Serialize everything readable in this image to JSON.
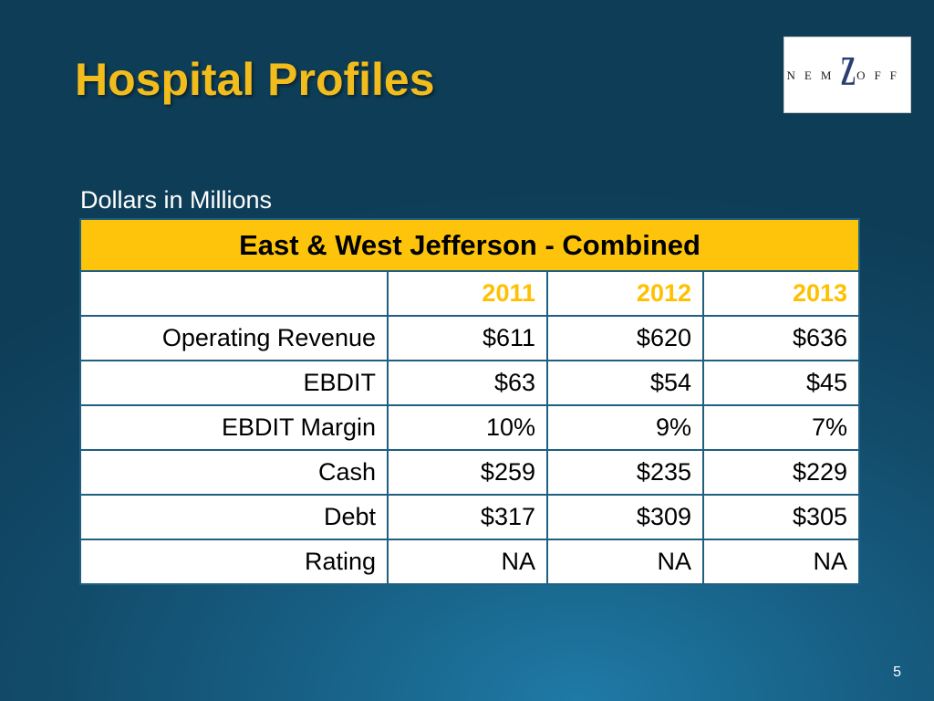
{
  "slide": {
    "title": "Hospital Profiles",
    "subtitle": "Dollars in Millions",
    "page_number": "5"
  },
  "logo": {
    "text_left": "NEM",
    "text_center": "Z",
    "text_right": "OFF"
  },
  "table": {
    "title": "East & West Jefferson - Combined",
    "years": [
      "2011",
      "2012",
      "2013"
    ],
    "rows": [
      {
        "label": "Operating Revenue",
        "values": [
          "$611",
          "$620",
          "$636"
        ]
      },
      {
        "label": "EBDIT",
        "values": [
          "$63",
          "$54",
          "$45"
        ]
      },
      {
        "label": "EBDIT Margin",
        "values": [
          "10%",
          "9%",
          "7%"
        ]
      },
      {
        "label": "Cash",
        "values": [
          "$259",
          "$235",
          "$229"
        ]
      },
      {
        "label": "Debt",
        "values": [
          "$317",
          "$309",
          "$305"
        ]
      },
      {
        "label": "Rating",
        "values": [
          "NA",
          "NA",
          "NA"
        ]
      }
    ]
  },
  "colors": {
    "title": "#f2bd1c",
    "header_fill": "#fec40b",
    "year_text": "#ffc000",
    "background": "#175f84"
  }
}
